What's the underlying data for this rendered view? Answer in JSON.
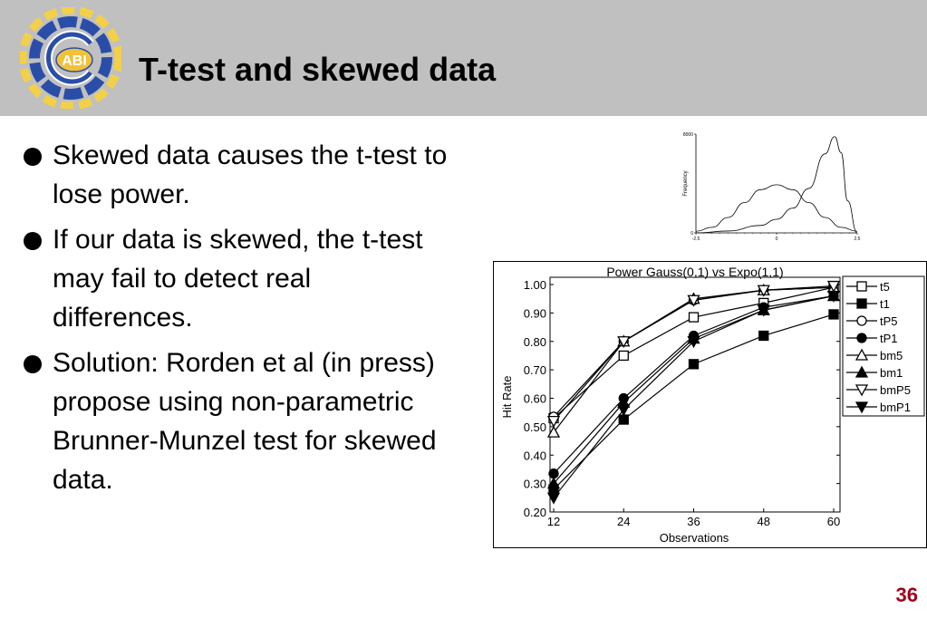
{
  "slide": {
    "title": "T-test and skewed data",
    "logo_text": "ABI",
    "page_number": "36",
    "bullets": [
      "Skewed data causes the t-test to lose power.",
      "If our data is skewed, the t-test may fail to detect real differences.",
      "Solution: Rorden et al (in press) propose using non-parametric Brunner-Munzel test for skewed data."
    ]
  },
  "chart_data": [
    {
      "type": "line",
      "ylabel": "Frequency",
      "xlim": [
        -2.5,
        2.5
      ],
      "ylim": [
        0,
        8000
      ],
      "yticks": [
        "8000",
        "0"
      ],
      "xticks": [
        "-2.5",
        "0",
        "2.5"
      ],
      "series": [
        {
          "x": [
            -2.5,
            -2.0,
            -1.5,
            -1.0,
            -0.5,
            0.0,
            0.5,
            1.0,
            1.5,
            2.0,
            2.5
          ],
          "y": [
            130,
            450,
            1250,
            2450,
            3500,
            3900,
            3500,
            2450,
            1250,
            450,
            130
          ]
        },
        {
          "x": [
            -2.5,
            -1.5,
            -0.5,
            0.0,
            0.5,
            1.0,
            1.5,
            1.8,
            2.0,
            2.2,
            2.5
          ],
          "y": [
            0,
            150,
            600,
            1100,
            2000,
            3600,
            6400,
            7800,
            6500,
            2600,
            0
          ]
        }
      ]
    },
    {
      "type": "line",
      "title": "Power Gauss(0,1) vs Expo(1,1)",
      "xlabel": "Observations",
      "ylabel": "Hit Rate",
      "x": [
        12,
        24,
        36,
        48,
        60
      ],
      "ylim": [
        0.2,
        1.0
      ],
      "yticks": [
        "1.00",
        "0.90",
        "0.80",
        "0.70",
        "0.60",
        "0.50",
        "0.40",
        "0.30",
        "0.20"
      ],
      "xticks": [
        "12",
        "24",
        "36",
        "48",
        "60"
      ],
      "legend_position": "right",
      "series": [
        {
          "name": "t5",
          "marker": "square-open",
          "values": [
            0.53,
            0.75,
            0.885,
            0.935,
            0.99
          ]
        },
        {
          "name": "t1",
          "marker": "square-filled",
          "values": [
            0.28,
            0.525,
            0.72,
            0.82,
            0.895
          ]
        },
        {
          "name": "tP5",
          "marker": "circle-open",
          "values": [
            0.535,
            0.8,
            0.945,
            0.98,
            0.99
          ]
        },
        {
          "name": "tP1",
          "marker": "circle-filled",
          "values": [
            0.335,
            0.6,
            0.82,
            0.92,
            0.96
          ]
        },
        {
          "name": "bm5",
          "marker": "tri-up-open",
          "values": [
            0.48,
            0.8,
            0.95,
            0.98,
            0.99
          ]
        },
        {
          "name": "bm1",
          "marker": "tri-up-filled",
          "values": [
            0.3,
            0.585,
            0.81,
            0.91,
            0.96
          ]
        },
        {
          "name": "bmP5",
          "marker": "tri-down-open",
          "values": [
            0.52,
            0.8,
            0.945,
            0.98,
            0.995
          ]
        },
        {
          "name": "bmP1",
          "marker": "tri-down-filled",
          "values": [
            0.25,
            0.56,
            0.8,
            0.91,
            0.96
          ]
        }
      ]
    }
  ]
}
